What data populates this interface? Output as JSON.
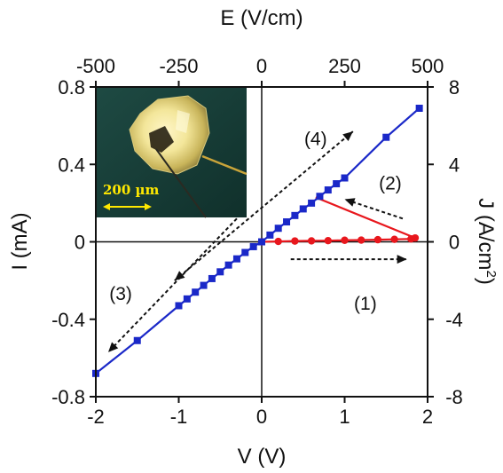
{
  "chart_data": {
    "type": "line",
    "xlabel": "V (V)",
    "ylabel": "I (mA)",
    "top_xlabel": "E (V/cm)",
    "right_ylabel_main": "J (A/cm",
    "right_ylabel_sup": "2",
    "right_ylabel_close": ")",
    "xlim": [
      -2,
      2
    ],
    "ylim": [
      -0.8,
      0.8
    ],
    "top_xlim": [
      -500,
      500
    ],
    "right_ylim": [
      -8,
      8
    ],
    "x_ticks": [
      "-2",
      "-1",
      "0",
      "1",
      "2"
    ],
    "y_ticks": [
      "-0.8",
      "-0.4",
      "0",
      "0.4",
      "0.8"
    ],
    "top_x_ticks": [
      "-500",
      "-250",
      "0",
      "250",
      "500"
    ],
    "right_y_ticks": [
      "-8",
      "-4",
      "0",
      "4",
      "8"
    ],
    "grid": false,
    "series": [
      {
        "color": "#e8171d",
        "marker": "circle",
        "x": [
          0,
          0.2,
          0.4,
          0.6,
          0.8,
          1.0,
          1.2,
          1.4,
          1.6,
          1.8,
          1.85
        ],
        "y": [
          0,
          0.002,
          0.004,
          0.005,
          0.006,
          0.008,
          0.009,
          0.011,
          0.013,
          0.015,
          0.02
        ]
      },
      {
        "color": "#e8171d",
        "marker": "none",
        "x": [
          1.85,
          0.65
        ],
        "y": [
          0.02,
          0.23
        ]
      },
      {
        "color": "#1a28c8",
        "marker": "square",
        "x": [
          -2,
          -1.5,
          -1.0,
          -0.9,
          -0.8,
          -0.7,
          -0.6,
          -0.5,
          -0.4,
          -0.3,
          -0.2,
          -0.1,
          0,
          0.1,
          0.2,
          0.3,
          0.4,
          0.5,
          0.6,
          0.7,
          0.8,
          0.9,
          1.0,
          1.5,
          1.9
        ],
        "y": [
          -0.68,
          -0.51,
          -0.33,
          -0.295,
          -0.26,
          -0.225,
          -0.19,
          -0.155,
          -0.12,
          -0.088,
          -0.055,
          -0.025,
          0,
          0.035,
          0.07,
          0.103,
          0.136,
          0.17,
          0.2,
          0.235,
          0.268,
          0.3,
          0.33,
          0.54,
          0.69
        ]
      }
    ],
    "arrows": [
      {
        "label": "(1)",
        "from": [
          0.35,
          -0.09
        ],
        "to": [
          1.75,
          -0.09
        ],
        "heads": "end",
        "label_at": [
          1.25,
          -0.35
        ]
      },
      {
        "label": "(2)",
        "from": [
          1.7,
          0.12
        ],
        "to": [
          1.0,
          0.22
        ],
        "heads": "end",
        "label_at": [
          1.55,
          0.27
        ]
      },
      {
        "label": "(3)",
        "from": [
          -0.3,
          0.12
        ],
        "to": [
          -1.85,
          -0.57
        ],
        "heads": "end",
        "label_at": [
          -1.7,
          -0.3
        ]
      },
      {
        "label": "(4)",
        "from": [
          -1.05,
          -0.2
        ],
        "to": [
          1.1,
          0.57
        ],
        "heads": "both",
        "label_at": [
          0.65,
          0.5
        ]
      }
    ],
    "inset": {
      "scale_bar_label": "200 µm"
    }
  }
}
